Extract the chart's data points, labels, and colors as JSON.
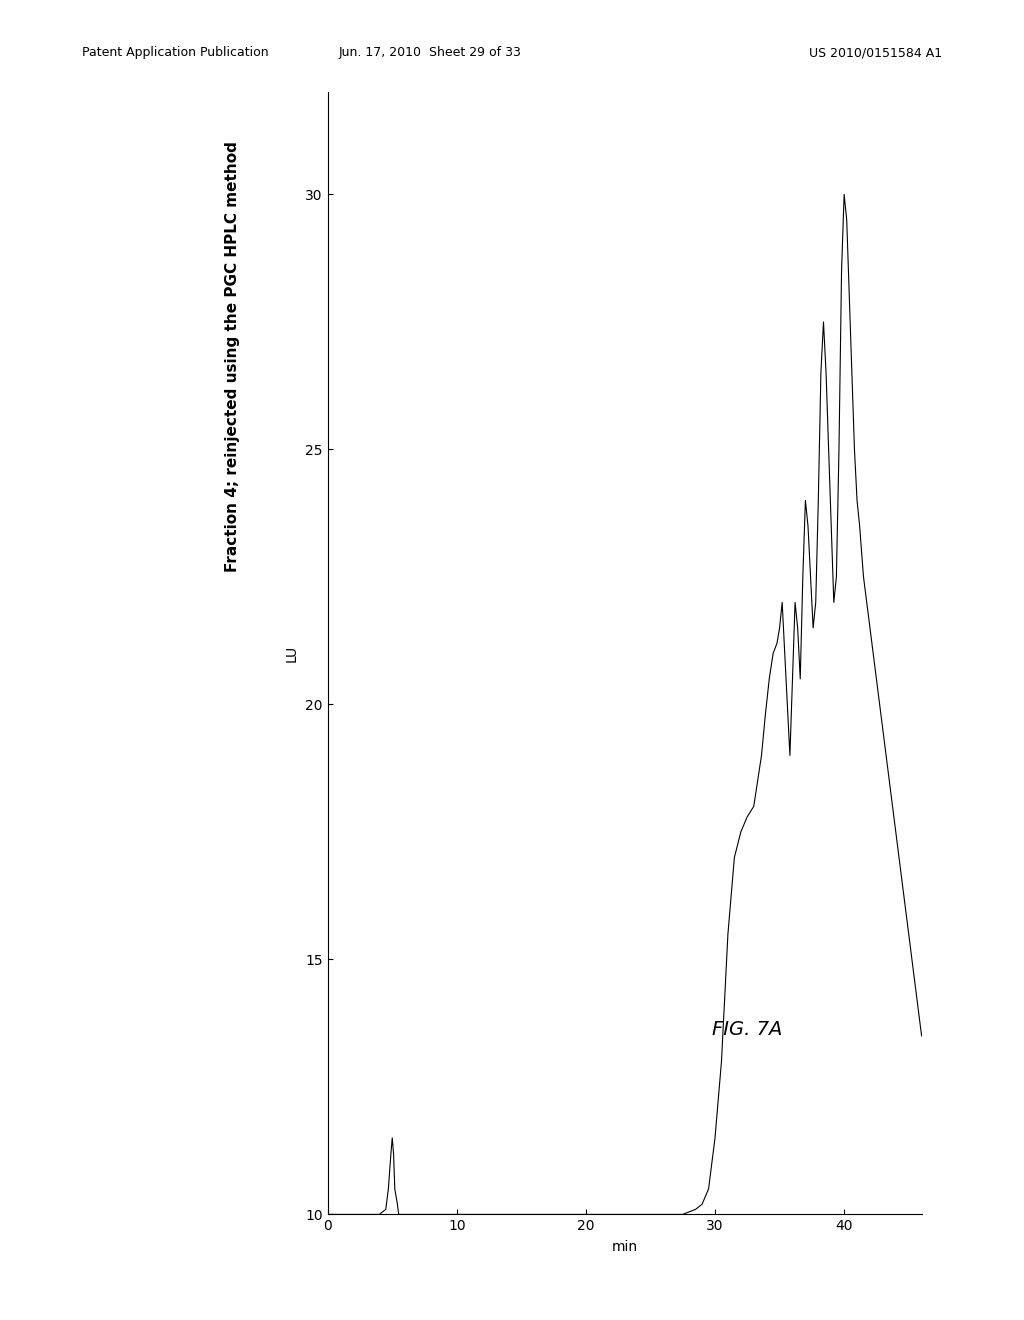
{
  "header_left": "Patent Application Publication",
  "header_center": "Jun. 17, 2010  Sheet 29 of 33",
  "header_right": "US 2010/0151584 A1",
  "figure_label": "FIG. 7A",
  "y_label": "LU",
  "x_label": "min",
  "title_text": "Fraction 4; reinjected using the PGC HPLC method",
  "ylim": [
    10,
    32
  ],
  "xlim": [
    0,
    46
  ],
  "yticks": [
    10,
    15,
    20,
    25,
    30
  ],
  "xticks": [
    0,
    10,
    20,
    30,
    40
  ],
  "background_color": "#ffffff",
  "line_color": "#000000",
  "chromatogram_x": [
    0,
    1,
    2,
    3,
    4,
    4.5,
    4.7,
    4.9,
    5.0,
    5.1,
    5.2,
    5.4,
    5.5,
    5.6,
    6,
    7,
    8,
    9,
    10,
    11,
    12,
    13,
    14,
    15,
    16,
    17,
    18,
    19,
    20,
    21,
    22,
    23,
    24,
    25,
    26,
    27,
    27.5,
    28,
    28.5,
    29,
    29.5,
    30,
    30.5,
    31,
    31.5,
    32,
    32.5,
    33,
    33.3,
    33.6,
    33.9,
    34.2,
    34.5,
    34.8,
    35.0,
    35.2,
    35.4,
    35.6,
    35.8,
    36.0,
    36.2,
    36.4,
    36.6,
    36.8,
    37.0,
    37.2,
    37.4,
    37.6,
    37.8,
    38.0,
    38.2,
    38.4,
    38.6,
    38.8,
    39.0,
    39.2,
    39.4,
    39.6,
    39.8,
    40.0,
    40.2,
    40.4,
    40.6,
    40.8,
    41.0,
    41.2,
    41.5,
    42.0,
    42.5,
    43.0,
    43.5,
    44.0,
    44.5,
    45.0,
    45.5,
    46.0
  ],
  "chromatogram_y": [
    10.0,
    10.0,
    10.0,
    10.0,
    10.0,
    10.1,
    10.5,
    11.2,
    11.5,
    11.2,
    10.5,
    10.2,
    10.0,
    10.0,
    10.0,
    10.0,
    10.0,
    10.0,
    10.0,
    10.0,
    10.0,
    10.0,
    10.0,
    10.0,
    10.0,
    10.0,
    10.0,
    10.0,
    10.0,
    10.0,
    10.0,
    10.0,
    10.0,
    10.0,
    10.0,
    10.0,
    10.0,
    10.05,
    10.1,
    10.2,
    10.5,
    11.5,
    13.0,
    15.5,
    17.0,
    17.5,
    17.8,
    18.0,
    18.5,
    19.0,
    19.8,
    20.5,
    21.0,
    21.2,
    21.5,
    22.0,
    21.0,
    20.0,
    19.0,
    20.5,
    22.0,
    21.5,
    20.5,
    22.5,
    24.0,
    23.5,
    22.5,
    21.5,
    22.0,
    24.0,
    26.5,
    27.5,
    26.5,
    25.0,
    23.5,
    22.0,
    22.5,
    25.0,
    28.5,
    30.0,
    29.5,
    28.0,
    26.5,
    25.0,
    24.0,
    23.5,
    22.5,
    21.5,
    20.5,
    19.5,
    18.5,
    17.5,
    16.5,
    15.5,
    14.5,
    13.5
  ]
}
